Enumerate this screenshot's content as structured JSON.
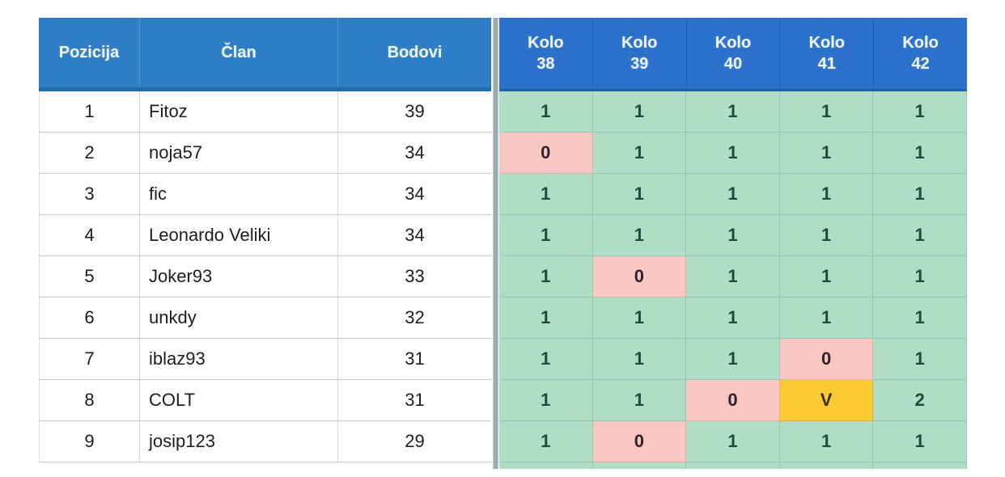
{
  "columns": {
    "pozicija": "Pozicija",
    "clan": "Član",
    "bodovi": "Bodovi"
  },
  "kolo_columns": [
    {
      "line1": "Kolo",
      "line2": "38"
    },
    {
      "line1": "Kolo",
      "line2": "39"
    },
    {
      "line1": "Kolo",
      "line2": "40"
    },
    {
      "line1": "Kolo",
      "line2": "41"
    },
    {
      "line1": "Kolo",
      "line2": "42"
    }
  ],
  "rows": [
    {
      "pozicija": "1",
      "clan": "Fitoz",
      "bodovi": "39",
      "rounds": [
        {
          "value": "1",
          "state": "green"
        },
        {
          "value": "1",
          "state": "green"
        },
        {
          "value": "1",
          "state": "green"
        },
        {
          "value": "1",
          "state": "green"
        },
        {
          "value": "1",
          "state": "green"
        }
      ]
    },
    {
      "pozicija": "2",
      "clan": "noja57",
      "bodovi": "34",
      "rounds": [
        {
          "value": "0",
          "state": "red"
        },
        {
          "value": "1",
          "state": "green"
        },
        {
          "value": "1",
          "state": "green"
        },
        {
          "value": "1",
          "state": "green"
        },
        {
          "value": "1",
          "state": "green"
        }
      ]
    },
    {
      "pozicija": "3",
      "clan": "fic",
      "bodovi": "34",
      "rounds": [
        {
          "value": "1",
          "state": "green"
        },
        {
          "value": "1",
          "state": "green"
        },
        {
          "value": "1",
          "state": "green"
        },
        {
          "value": "1",
          "state": "green"
        },
        {
          "value": "1",
          "state": "green"
        }
      ]
    },
    {
      "pozicija": "4",
      "clan": "Leonardo Veliki",
      "bodovi": "34",
      "rounds": [
        {
          "value": "1",
          "state": "green"
        },
        {
          "value": "1",
          "state": "green"
        },
        {
          "value": "1",
          "state": "green"
        },
        {
          "value": "1",
          "state": "green"
        },
        {
          "value": "1",
          "state": "green"
        }
      ]
    },
    {
      "pozicija": "5",
      "clan": "Joker93",
      "bodovi": "33",
      "rounds": [
        {
          "value": "1",
          "state": "green"
        },
        {
          "value": "0",
          "state": "red"
        },
        {
          "value": "1",
          "state": "green"
        },
        {
          "value": "1",
          "state": "green"
        },
        {
          "value": "1",
          "state": "green"
        }
      ]
    },
    {
      "pozicija": "6",
      "clan": "unkdy",
      "bodovi": "32",
      "rounds": [
        {
          "value": "1",
          "state": "green"
        },
        {
          "value": "1",
          "state": "green"
        },
        {
          "value": "1",
          "state": "green"
        },
        {
          "value": "1",
          "state": "green"
        },
        {
          "value": "1",
          "state": "green"
        }
      ]
    },
    {
      "pozicija": "7",
      "clan": "iblaz93",
      "bodovi": "31",
      "rounds": [
        {
          "value": "1",
          "state": "green"
        },
        {
          "value": "1",
          "state": "green"
        },
        {
          "value": "1",
          "state": "green"
        },
        {
          "value": "0",
          "state": "red"
        },
        {
          "value": "1",
          "state": "green"
        }
      ]
    },
    {
      "pozicija": "8",
      "clan": "COLT",
      "bodovi": "31",
      "rounds": [
        {
          "value": "1",
          "state": "green"
        },
        {
          "value": "1",
          "state": "green"
        },
        {
          "value": "0",
          "state": "red"
        },
        {
          "value": "V",
          "state": "yellow"
        },
        {
          "value": "2",
          "state": "green"
        }
      ]
    },
    {
      "pozicija": "9",
      "clan": "josip123",
      "bodovi": "29",
      "rounds": [
        {
          "value": "1",
          "state": "green"
        },
        {
          "value": "0",
          "state": "red"
        },
        {
          "value": "1",
          "state": "green"
        },
        {
          "value": "1",
          "state": "green"
        },
        {
          "value": "1",
          "state": "green"
        }
      ]
    }
  ],
  "colors": {
    "header_left_bg": "#2E7EC5",
    "header_right_bg": "#2B71CC",
    "header_text": "#EDF6FC",
    "header_border_bottom": "#1E6CB2",
    "cell_green": "#AFDDC5",
    "cell_red": "#F8C7C2",
    "cell_yellow": "#FBCB33",
    "green_text": "#1C4F3A",
    "red_text": "#33202A",
    "yellow_text": "#3E2D0F",
    "divider": "#9DAAB3",
    "row_border": "#C9C9C9"
  }
}
